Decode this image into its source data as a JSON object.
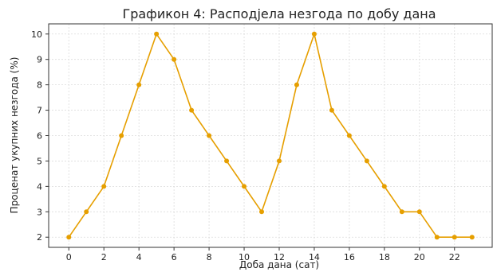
{
  "chart_data": {
    "type": "line",
    "title": "Графикон 4: Расподјела незгода по добу дана",
    "xlabel": "Доба дана (сат)",
    "ylabel": "Проценат укупних незгода (%)",
    "x": [
      0,
      1,
      2,
      3,
      4,
      5,
      6,
      7,
      8,
      9,
      10,
      11,
      12,
      13,
      14,
      15,
      16,
      17,
      18,
      19,
      20,
      21,
      22,
      23
    ],
    "series": [
      {
        "values": [
          2,
          3,
          4,
          6,
          8,
          10,
          9,
          7,
          6,
          5,
          4,
          3,
          5,
          8,
          10,
          7,
          6,
          5,
          4,
          3,
          3,
          2,
          2,
          2
        ]
      }
    ],
    "xticks": [
      0,
      2,
      4,
      6,
      8,
      10,
      12,
      14,
      16,
      18,
      20,
      22
    ],
    "yticks": [
      2,
      3,
      4,
      5,
      6,
      7,
      8,
      9,
      10
    ],
    "xlim": [
      -1.15,
      24.15
    ],
    "ylim": [
      1.6,
      10.4
    ],
    "grid": true,
    "line_color": "#E69F00",
    "grid_color": "#dcdcdc",
    "axis_color": "#333333"
  }
}
